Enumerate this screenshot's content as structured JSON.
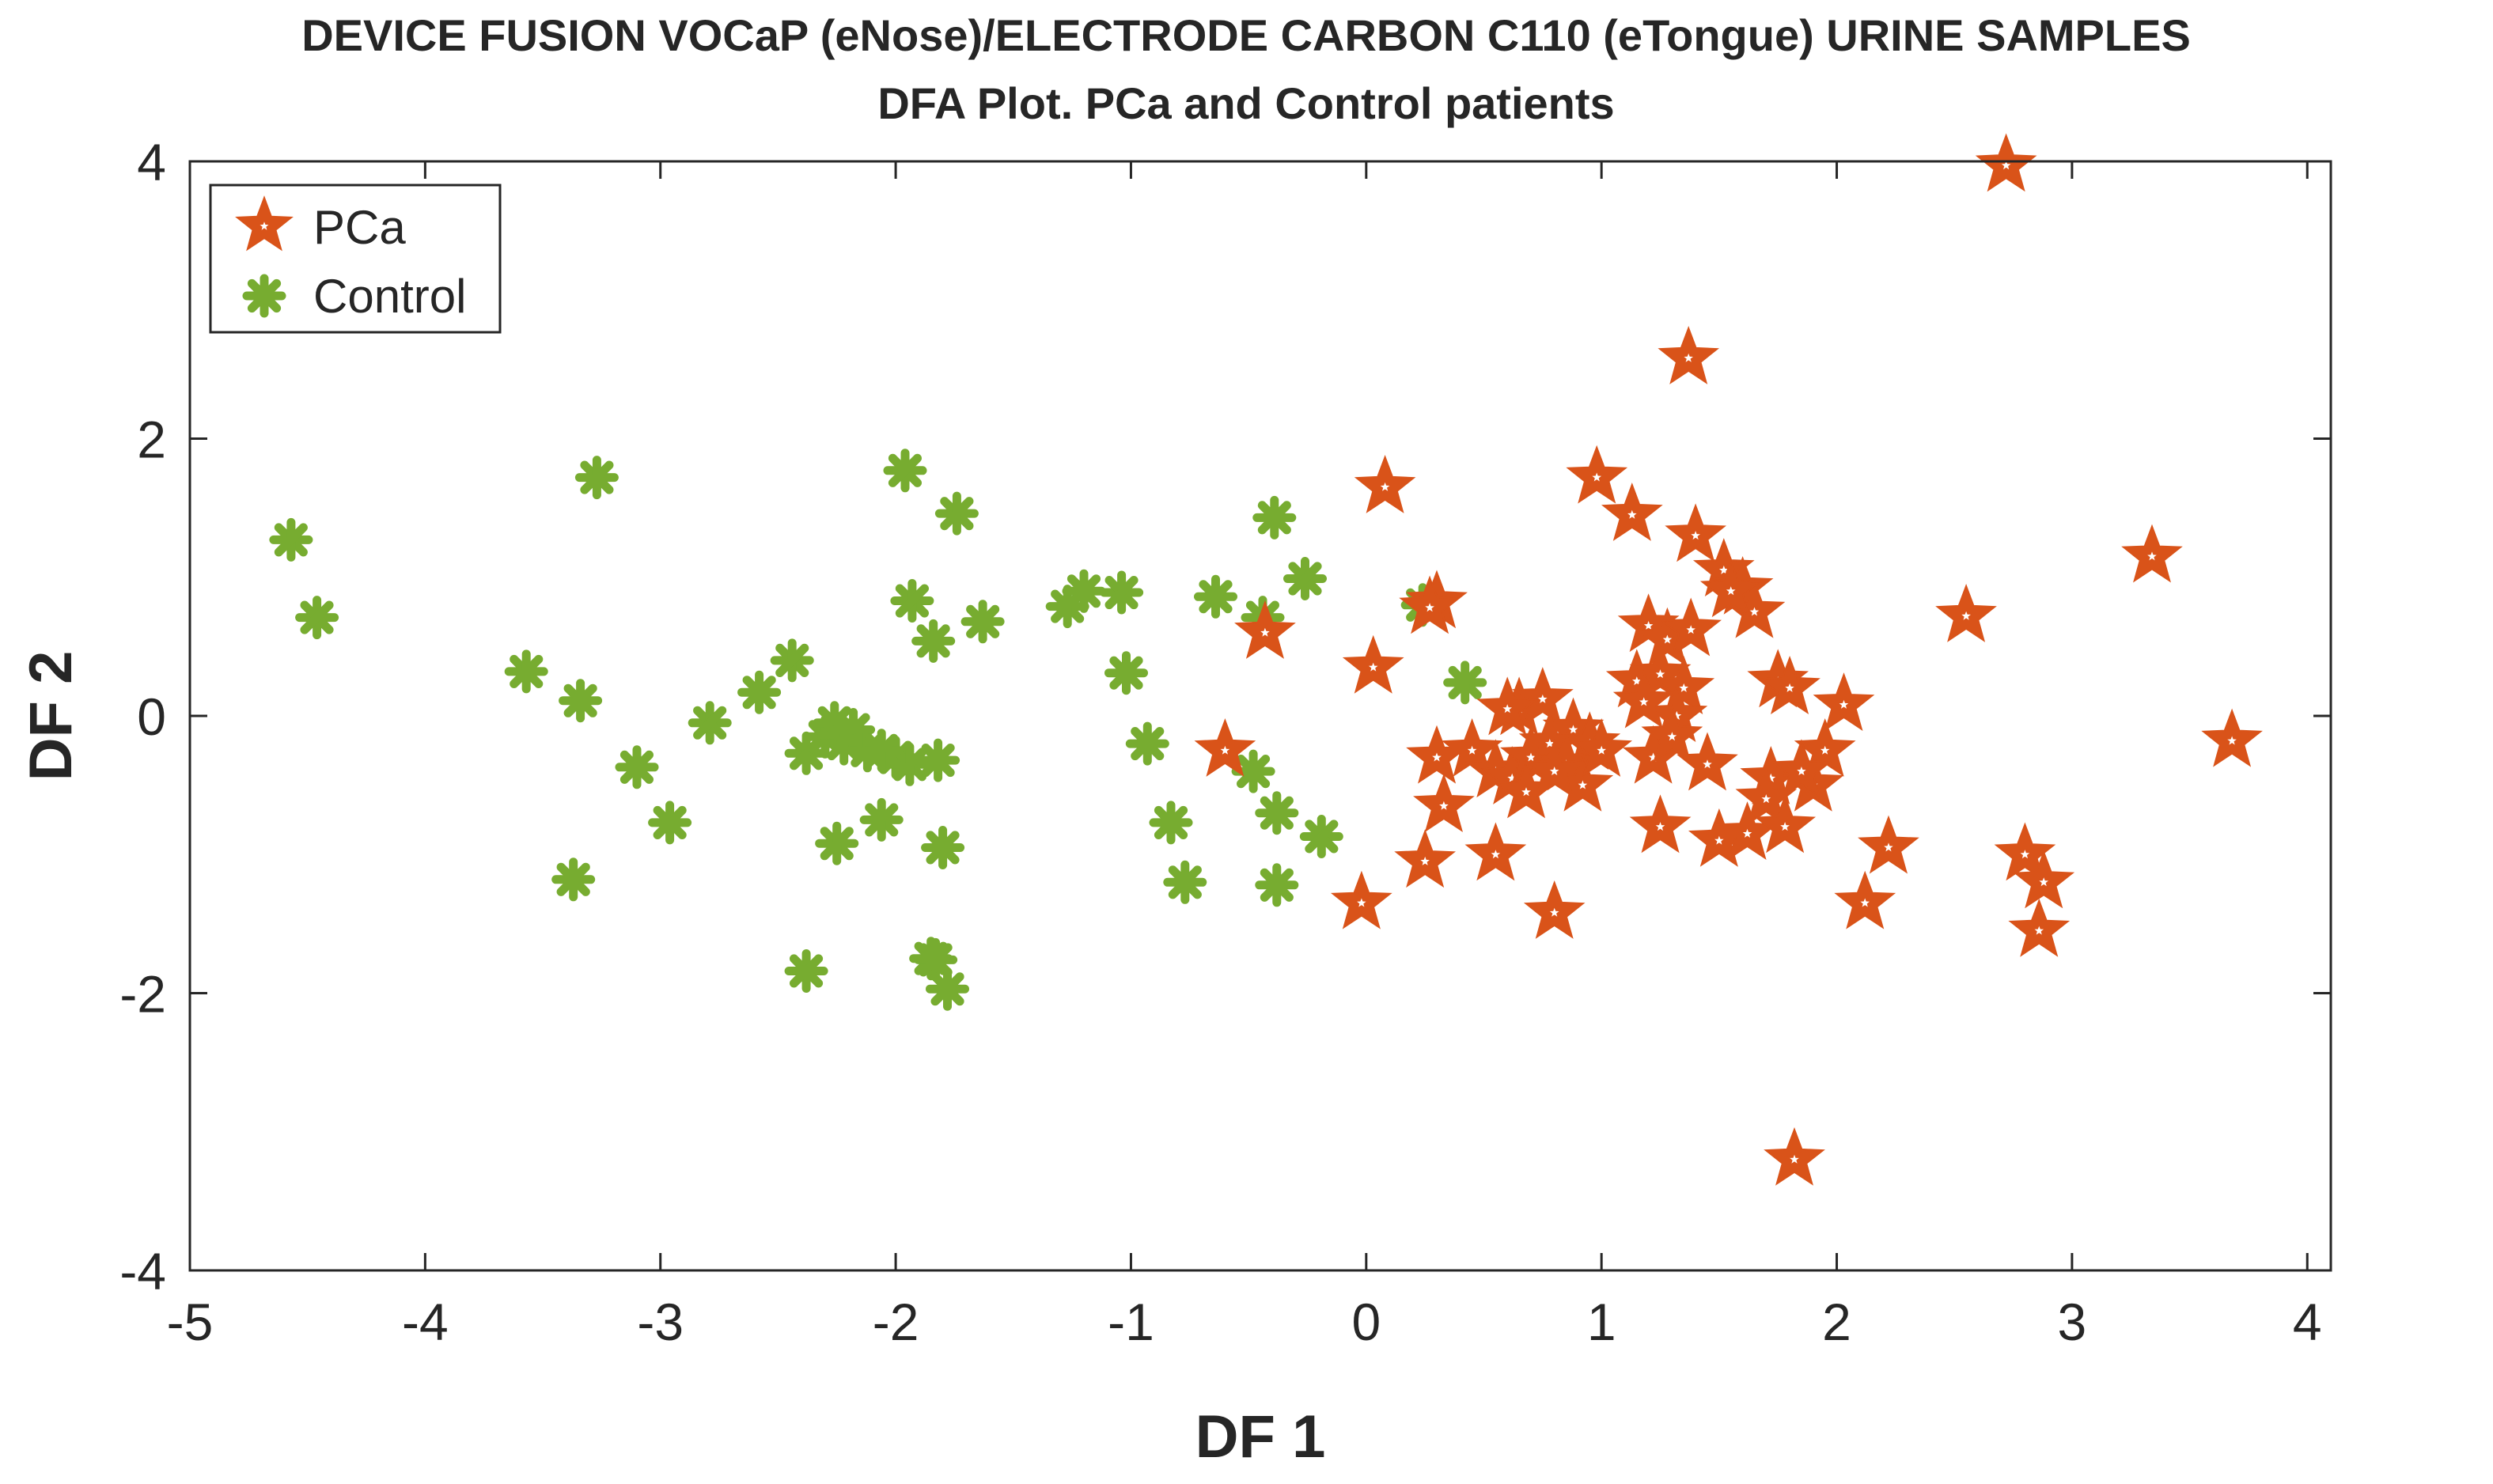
{
  "chart_data": {
    "type": "scatter",
    "title_line1": "DEVICE FUSION VOCaP (eNose)/ELECTRODE CARBON C110 (eTongue) URINE SAMPLES",
    "title_line2": "DFA Plot. PCa and Control patients",
    "xlabel": "DF 1",
    "ylabel": "DF 2",
    "xlim": [
      -5,
      4.1
    ],
    "ylim": [
      -4,
      4
    ],
    "xticks": [
      -5,
      -4,
      -3,
      -2,
      -1,
      0,
      1,
      2,
      3,
      4
    ],
    "yticks": [
      -4,
      -2,
      0,
      2,
      4
    ],
    "xtick_labels": [
      "-5",
      "-4",
      "-3",
      "-2",
      "-1",
      "0",
      "1",
      "2",
      "3",
      "4"
    ],
    "ytick_labels": [
      "-4",
      "-2",
      "0",
      "2",
      "4"
    ],
    "grid": false,
    "legend_position": "top-left",
    "colors": {
      "pca": "#D95319",
      "control": "#77AC30",
      "axis": "#262626"
    },
    "series": [
      {
        "name": "PCa",
        "marker": "star",
        "x": [
          2.72,
          1.37,
          0.08,
          0.98,
          1.13,
          1.4,
          1.52,
          1.6,
          1.65,
          3.34,
          2.55,
          0.3,
          0.27,
          -0.43,
          0.03,
          1.2,
          1.28,
          1.38,
          1.15,
          1.25,
          1.35,
          1.32,
          1.18,
          1.75,
          1.8,
          2.03,
          0.65,
          0.75,
          0.88,
          0.95,
          0.3,
          0.45,
          0.55,
          0.62,
          0.7,
          0.78,
          0.85,
          0.92,
          0.68,
          0.8,
          1.22,
          1.45,
          1.72,
          1.95,
          1.9,
          1.85,
          1.7,
          -0.6,
          0.33,
          0.25,
          0.55,
          1.25,
          1.5,
          1.62,
          1.78,
          2.22,
          2.12,
          0.8,
          -0.02,
          2.8,
          2.88,
          2.86,
          1.82,
          3.68,
          1.0,
          0.6,
          1.3,
          1.55
        ],
        "y": [
          3.97,
          2.58,
          1.65,
          1.72,
          1.45,
          1.3,
          1.05,
          0.92,
          0.75,
          1.15,
          0.72,
          0.82,
          0.78,
          0.6,
          0.35,
          0.65,
          0.55,
          0.62,
          0.25,
          0.3,
          0.2,
          0.0,
          0.1,
          0.25,
          0.2,
          0.08,
          0.05,
          0.12,
          -0.1,
          -0.2,
          -0.3,
          -0.25,
          -0.4,
          -0.45,
          -0.3,
          -0.2,
          -0.35,
          -0.5,
          -0.55,
          -0.4,
          -0.3,
          -0.35,
          -0.45,
          -0.25,
          -0.5,
          -0.4,
          -0.6,
          -0.25,
          -0.65,
          -1.05,
          -1.0,
          -0.8,
          -0.9,
          -0.85,
          -0.8,
          -0.95,
          -1.35,
          -1.42,
          -1.35,
          -1.0,
          -1.2,
          -1.55,
          -3.2,
          -0.18,
          -0.25,
          0.05,
          -0.15,
          0.9
        ]
      },
      {
        "name": "Control",
        "marker": "asterisk",
        "x": [
          -4.57,
          -4.46,
          -3.27,
          -1.96,
          -1.74,
          -1.93,
          -1.63,
          -1.84,
          -3.57,
          -3.34,
          -3.1,
          -2.96,
          -2.79,
          -2.58,
          -2.44,
          -2.38,
          -2.3,
          -2.26,
          -2.22,
          -2.18,
          -2.12,
          -2.06,
          -2.0,
          -1.94,
          -1.82,
          -1.8,
          -2.25,
          -2.06,
          -1.85,
          -3.37,
          -2.38,
          -1.83,
          -1.78,
          -1.27,
          -1.2,
          -1.04,
          -0.64,
          -0.44,
          -0.39,
          -0.26,
          0.24,
          0.42,
          -1.02,
          -0.93,
          -0.83,
          -0.77,
          -0.48,
          -0.38,
          -0.19,
          -0.38
        ],
        "y": [
          1.27,
          0.71,
          1.72,
          1.77,
          1.46,
          0.83,
          0.68,
          0.54,
          0.32,
          0.11,
          -0.37,
          -0.77,
          -0.05,
          0.17,
          0.4,
          -0.27,
          -0.15,
          -0.05,
          -0.2,
          -0.1,
          -0.25,
          -0.75,
          -0.3,
          -0.35,
          -0.32,
          -0.95,
          -0.92,
          -0.25,
          -1.75,
          -1.18,
          -1.84,
          -1.76,
          -1.97,
          0.79,
          0.9,
          0.89,
          0.86,
          0.71,
          1.43,
          0.99,
          0.8,
          0.24,
          0.31,
          -0.2,
          -0.77,
          -1.2,
          -0.4,
          -0.7,
          -0.87,
          -1.22
        ]
      }
    ]
  }
}
